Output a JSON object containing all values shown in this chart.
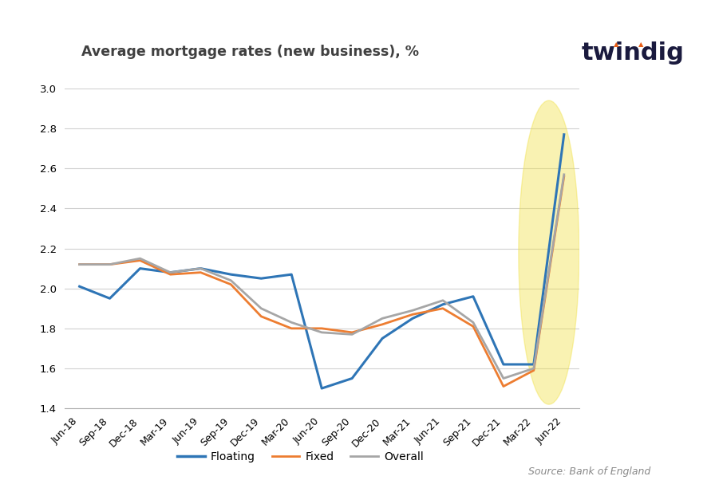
{
  "title": "Average mortgage rates (new business), %",
  "source": "Source: Bank of England",
  "twindig_text": "twindig",
  "background_color": "#ffffff",
  "x_labels": [
    "Jun-18",
    "Sep-18",
    "Dec-18",
    "Mar-19",
    "Jun-19",
    "Sep-19",
    "Dec-19",
    "Mar-20",
    "Jun-20",
    "Sep-20",
    "Dec-20",
    "Mar-21",
    "Jun-21",
    "Sep-21",
    "Dec-21",
    "Mar-22",
    "Jun-22"
  ],
  "floating": [
    2.01,
    1.95,
    2.1,
    2.08,
    2.1,
    2.07,
    2.05,
    2.07,
    1.5,
    1.55,
    1.75,
    1.85,
    1.92,
    1.96,
    1.62,
    1.62,
    2.77
  ],
  "fixed": [
    2.12,
    2.12,
    2.14,
    2.07,
    2.08,
    2.02,
    1.86,
    1.8,
    1.8,
    1.78,
    1.82,
    1.87,
    1.9,
    1.81,
    1.51,
    1.59,
    2.56
  ],
  "overall": [
    2.12,
    2.12,
    2.15,
    2.08,
    2.1,
    2.04,
    1.9,
    1.83,
    1.78,
    1.77,
    1.85,
    1.89,
    1.94,
    1.83,
    1.55,
    1.6,
    2.57
  ],
  "floating_color": "#2e75b6",
  "fixed_color": "#ed7d31",
  "overall_color": "#a6a6a6",
  "ylim": [
    1.4,
    3.0
  ],
  "yticks": [
    1.4,
    1.6,
    1.8,
    2.0,
    2.2,
    2.4,
    2.6,
    2.8,
    3.0
  ],
  "legend_labels": [
    "Floating",
    "Fixed",
    "Overall"
  ],
  "highlight_ellipse_color": "#f0e040",
  "highlight_ellipse_alpha": 0.4,
  "twindig_color": "#1a1a3e",
  "twindig_dot_color": "#e85d17"
}
